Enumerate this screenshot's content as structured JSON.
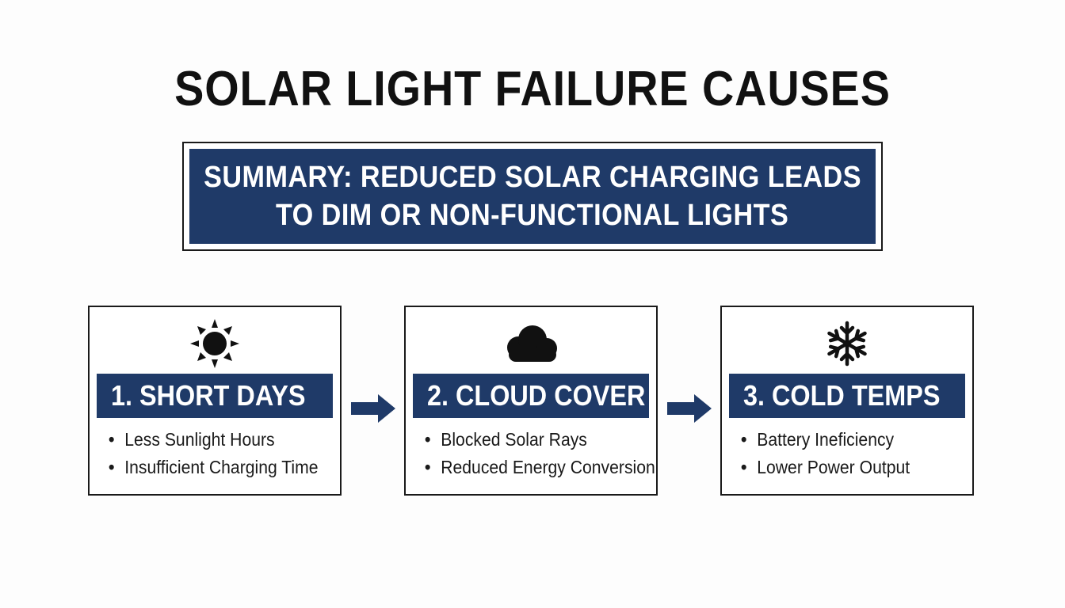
{
  "title": "SOLAR LIGHT FAILURE CAUSES",
  "summary": {
    "line1": "SUMMARY: REDUCED SOLAR CHARGING LEADS",
    "line2": "TO DIM OR NON-FUNCTIONAL LIGHTS"
  },
  "colors": {
    "accent": "#1f3a68",
    "text": "#111111",
    "background": "#fdfdfd"
  },
  "cards": [
    {
      "icon": "sun-icon",
      "heading": "1. SHORT DAYS",
      "bullets": [
        "Less Sunlight Hours",
        "Insufficient Charging Time"
      ]
    },
    {
      "icon": "cloud-icon",
      "heading": "2. CLOUD COVER",
      "bullets": [
        "Blocked Solar Rays",
        "Reduced Energy Conversion"
      ]
    },
    {
      "icon": "snowflake-icon",
      "heading": "3. COLD TEMPS",
      "bullets": [
        "Battery Ineficiency",
        "Lower Power Output"
      ]
    }
  ],
  "arrows": [
    "arrow-right-icon",
    "arrow-right-icon"
  ]
}
